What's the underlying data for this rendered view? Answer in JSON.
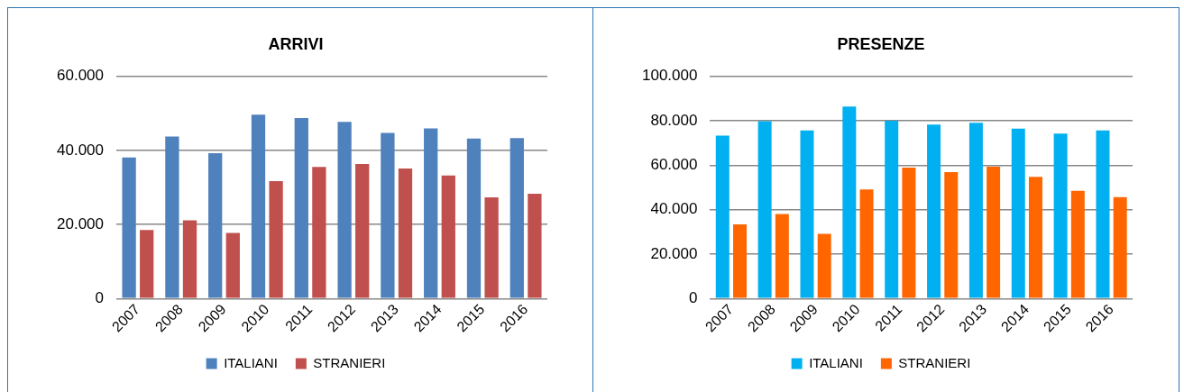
{
  "chart_data": [
    {
      "type": "bar",
      "title": "ARRIVI",
      "categories": [
        "2007",
        "2008",
        "2009",
        "2010",
        "2011",
        "2012",
        "2013",
        "2014",
        "2015",
        "2016"
      ],
      "series": [
        {
          "name": "ITALIANI",
          "color": "#4f81bd",
          "values": [
            38100,
            43700,
            39200,
            49600,
            48700,
            47700,
            44700,
            45900,
            43200,
            43300
          ]
        },
        {
          "name": "STRANIERI",
          "color": "#c0504d",
          "values": [
            18500,
            21100,
            17700,
            31700,
            35500,
            36300,
            35100,
            33200,
            27300,
            28300
          ]
        }
      ],
      "ylim": [
        0,
        60000
      ],
      "yticks": [
        {
          "value": 0,
          "label": "0"
        },
        {
          "value": 20000,
          "label": "20.000"
        },
        {
          "value": 40000,
          "label": "40.000"
        },
        {
          "value": 60000,
          "label": "60.000"
        }
      ],
      "grid": "y",
      "legend": "bottom"
    },
    {
      "type": "bar",
      "title": "PRESENZE",
      "categories": [
        "2007",
        "2008",
        "2009",
        "2010",
        "2011",
        "2012",
        "2013",
        "2014",
        "2015",
        "2016"
      ],
      "series": [
        {
          "name": "ITALIANI",
          "color": "#00b0f0",
          "values": [
            73300,
            79800,
            75600,
            86400,
            80000,
            78200,
            79100,
            76400,
            74200,
            75600
          ]
        },
        {
          "name": "STRANIERI",
          "color": "#ff6600",
          "values": [
            33300,
            38000,
            29100,
            49100,
            58900,
            56900,
            59300,
            54700,
            48400,
            45600
          ]
        }
      ],
      "ylim": [
        0,
        100000
      ],
      "yticks": [
        {
          "value": 0,
          "label": "0"
        },
        {
          "value": 20000,
          "label": "20.000"
        },
        {
          "value": 40000,
          "label": "40.000"
        },
        {
          "value": 60000,
          "label": "60.000"
        },
        {
          "value": 80000,
          "label": "80.000"
        },
        {
          "value": 100000,
          "label": "100.000"
        }
      ],
      "grid": "y",
      "legend": "bottom"
    }
  ]
}
